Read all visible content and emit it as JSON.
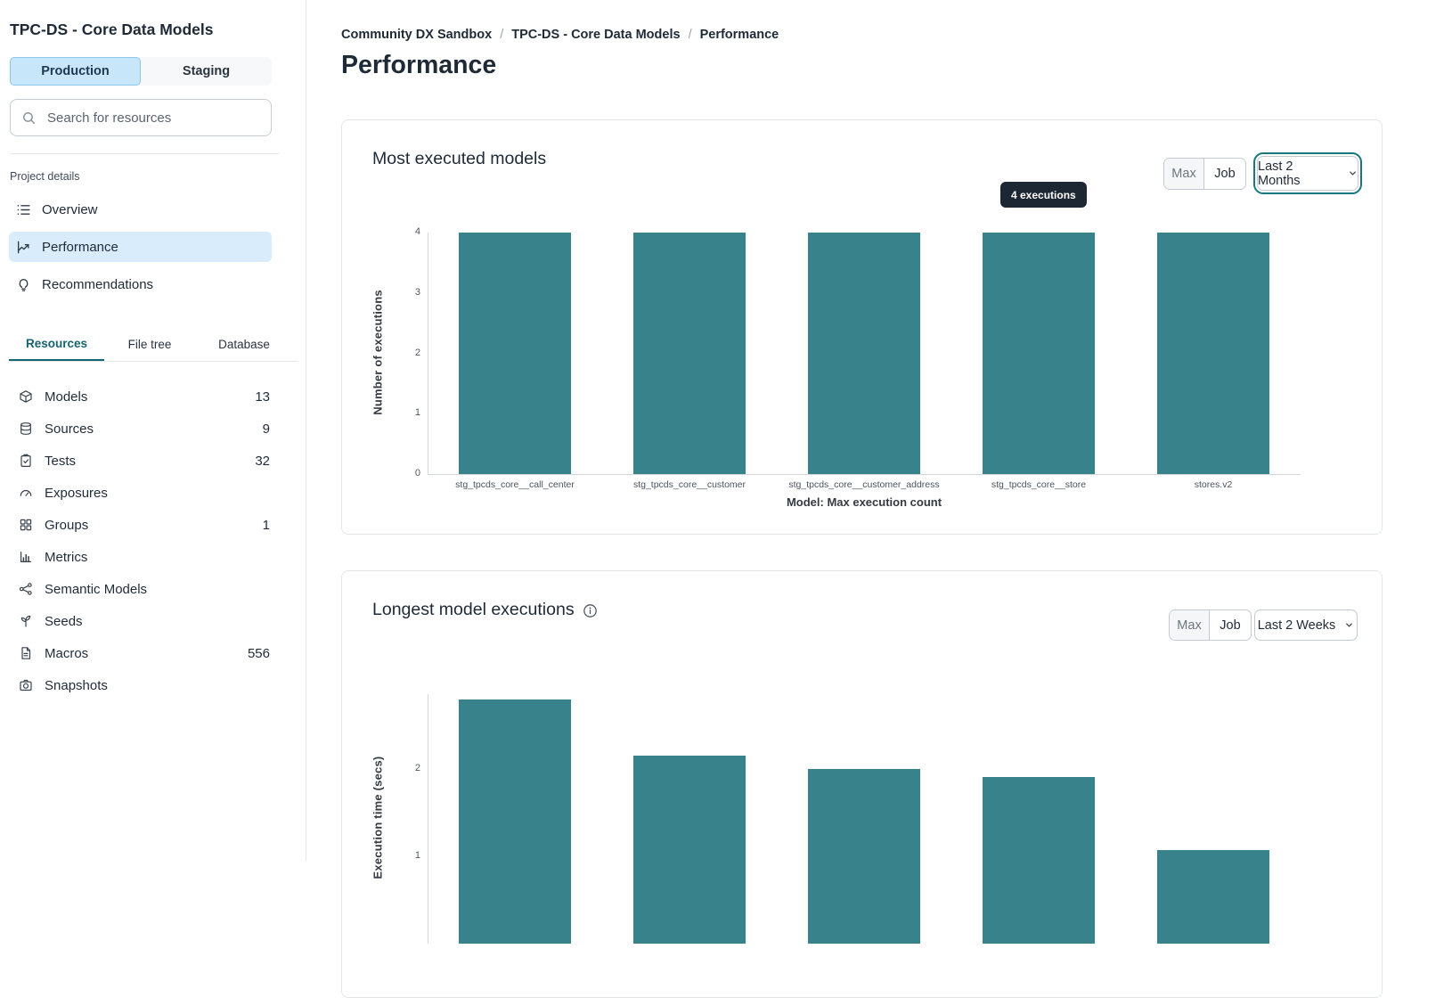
{
  "sidebar": {
    "title": "TPC-DS - Core Data Models",
    "env_tabs": [
      {
        "label": "Production",
        "active": true
      },
      {
        "label": "Staging",
        "active": false
      }
    ],
    "search": {
      "placeholder": "Search for resources",
      "icon": "search-icon"
    },
    "section_label": "Project details",
    "nav": [
      {
        "label": "Overview",
        "icon": "list-icon",
        "active": false
      },
      {
        "label": "Performance",
        "icon": "trend-chart-icon",
        "active": true
      },
      {
        "label": "Recommendations",
        "icon": "lightbulb-icon",
        "active": false
      }
    ],
    "resource_tabs": [
      {
        "label": "Resources",
        "active": true
      },
      {
        "label": "File tree",
        "active": false
      },
      {
        "label": "Database",
        "active": false
      }
    ],
    "resources": [
      {
        "label": "Models",
        "count": "13",
        "icon": "cube-icon"
      },
      {
        "label": "Sources",
        "count": "9",
        "icon": "database-icon"
      },
      {
        "label": "Tests",
        "count": "32",
        "icon": "clipboard-check-icon"
      },
      {
        "label": "Exposures",
        "count": "",
        "icon": "gauge-icon"
      },
      {
        "label": "Groups",
        "count": "1",
        "icon": "grid-icon"
      },
      {
        "label": "Metrics",
        "count": "",
        "icon": "bar-chart-icon"
      },
      {
        "label": "Semantic Models",
        "count": "",
        "icon": "network-icon"
      },
      {
        "label": "Seeds",
        "count": "",
        "icon": "sprout-icon"
      },
      {
        "label": "Macros",
        "count": "556",
        "icon": "document-icon"
      },
      {
        "label": "Snapshots",
        "count": "",
        "icon": "camera-icon"
      }
    ]
  },
  "breadcrumb": {
    "separator": "/",
    "items": [
      "Community DX Sandbox",
      "TPC-DS - Core Data Models",
      "Performance"
    ]
  },
  "page_title": "Performance",
  "cards": [
    {
      "title": "Most executed models",
      "toggle": {
        "max": "Max",
        "job": "Job"
      },
      "range_label": "Last 2 Months",
      "tooltip": "4 executions"
    },
    {
      "title": "Longest model executions",
      "toggle": {
        "max": "Max",
        "job": "Job"
      },
      "range_label": "Last 2 Weeks",
      "info_icon": "info-icon"
    }
  ],
  "chart_data": [
    {
      "type": "bar",
      "title": "Most executed models",
      "categories": [
        "stg_tpcds_core__call_center",
        "stg_tpcds_core__customer",
        "stg_tpcds_core__customer_address",
        "stg_tpcds_core__store",
        "stores.v2"
      ],
      "values": [
        4,
        4,
        4,
        4,
        4
      ],
      "xlabel": "Model: Max execution count",
      "ylabel": "Number of executions",
      "ylim": [
        0,
        4
      ],
      "yticks": [
        0,
        1,
        2,
        3,
        4
      ],
      "grid": false,
      "legend": false,
      "bar_color": "#37828b",
      "tooltip": {
        "text": "4 executions",
        "bar_index": 3
      }
    },
    {
      "type": "bar",
      "title": "Longest model executions",
      "values": [
        2.8,
        2.15,
        2.0,
        1.91,
        1.07
      ],
      "ylabel": "Execution time (secs)",
      "ylim": [
        0,
        2.86
      ],
      "yticks": [
        1,
        2
      ],
      "grid": false,
      "legend": false,
      "bar_color": "#37828b",
      "clipped_at_viewport_bottom": true
    }
  ],
  "colors": {
    "accent_teal": "#156570",
    "focus_ring_teal": "#17767e",
    "bar_teal": "#37828b",
    "active_blue_tab": "#c8e6f9",
    "active_blue_nav": "#d8ecfb",
    "tooltip_bg": "#1d2734",
    "border_gray": "#e4e7ea"
  }
}
